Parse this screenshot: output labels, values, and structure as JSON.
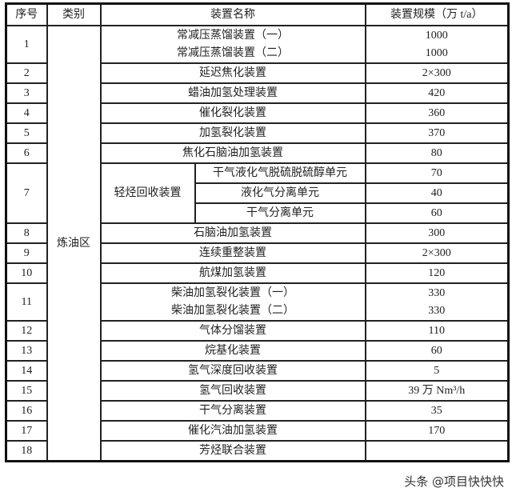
{
  "header": {
    "index": "序号",
    "category": "类别",
    "name": "装置名称",
    "scale": "装置规模（万 t/a）"
  },
  "category": "炼油区",
  "rows": [
    {
      "no": "1",
      "names": [
        "常减压蒸馏装置（一）",
        "常减压蒸馏装置（二）"
      ],
      "scales": [
        "1000",
        "1000"
      ]
    },
    {
      "no": "2",
      "names": [
        "延迟焦化装置"
      ],
      "scales": [
        "2×300"
      ]
    },
    {
      "no": "3",
      "names": [
        "蜡油加氢处理装置"
      ],
      "scales": [
        "420"
      ]
    },
    {
      "no": "4",
      "names": [
        "催化裂化装置"
      ],
      "scales": [
        "360"
      ]
    },
    {
      "no": "5",
      "names": [
        "加氢裂化装置"
      ],
      "scales": [
        "370"
      ]
    },
    {
      "no": "6",
      "names": [
        "焦化石脑油加氢装置"
      ],
      "scales": [
        "80"
      ]
    },
    {
      "no": "7",
      "group": "轻烃回收装置",
      "units": [
        {
          "name": "干气液化气脱硫脱硫醇单元",
          "scale": "70"
        },
        {
          "name": "液化气分离单元",
          "scale": "40"
        },
        {
          "name": "干气分离单元",
          "scale": "60"
        }
      ]
    },
    {
      "no": "8",
      "names": [
        "石脑油加氢装置"
      ],
      "scales": [
        "300"
      ]
    },
    {
      "no": "9",
      "names": [
        "连续重整装置"
      ],
      "scales": [
        "2×300"
      ]
    },
    {
      "no": "10",
      "names": [
        "航煤加氢装置"
      ],
      "scales": [
        "120"
      ]
    },
    {
      "no": "11",
      "names": [
        "柴油加氢裂化装置（一）",
        "柴油加氢裂化装置（二）"
      ],
      "scales": [
        "330",
        "330"
      ]
    },
    {
      "no": "12",
      "names": [
        "气体分馏装置"
      ],
      "scales": [
        "110"
      ]
    },
    {
      "no": "13",
      "names": [
        "烷基化装置"
      ],
      "scales": [
        "60"
      ]
    },
    {
      "no": "14",
      "names": [
        "氢气深度回收装置"
      ],
      "scales": [
        "5"
      ]
    },
    {
      "no": "15",
      "names": [
        "氢气回收装置"
      ],
      "scales": [
        "39 万 Nm³/h"
      ]
    },
    {
      "no": "16",
      "names": [
        "干气分离装置"
      ],
      "scales": [
        "35"
      ]
    },
    {
      "no": "17",
      "names": [
        "催化汽油加氢装置"
      ],
      "scales": [
        "170"
      ]
    },
    {
      "no": "18",
      "names": [
        "芳烃联合装置"
      ],
      "scales": [
        ""
      ]
    }
  ],
  "watermark": "头条 @项目快快快"
}
